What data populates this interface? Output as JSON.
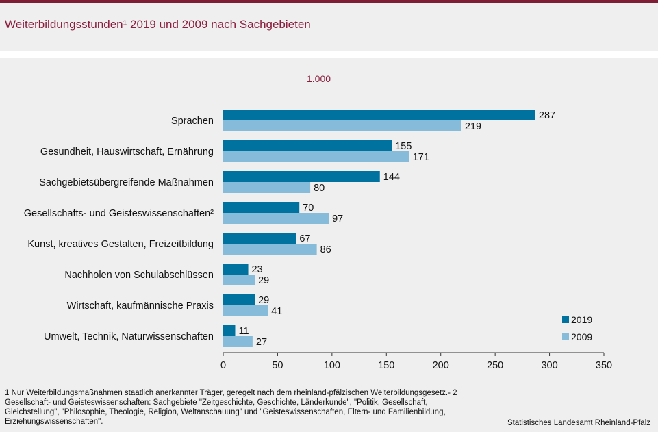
{
  "title": "Weiterbildungsstunden¹ 2019 und 2009 nach Sachgebieten",
  "unit_label": "1.000",
  "footnote": "1 Nur Weiterbildungsmaßnahmen  staatlich anerkannter Träger,  geregelt  nach dem rheinland-pfälzischen Weiterbildungsgesetz.- 2 Gesellschaft- und Geisteswissenschaften: Sachgebiete \"Zeitgeschichte, Geschichte, Länderkunde\", \"Politik, Gesellschaft, Gleichstellung\", \"Philosophie, Theologie, Religion, Weltanschauung\" und \"Geisteswissenschaften, Eltern- und Familienbildung, Erziehungswissenschaften\".",
  "source": "Statistisches Landesamt Rheinland-Pfalz",
  "legend": [
    {
      "label": "2019",
      "color": "#00729f"
    },
    {
      "label": "2009",
      "color": "#86bcd9"
    }
  ],
  "chart_data": {
    "type": "bar",
    "orientation": "horizontal",
    "categories": [
      "Sprachen",
      "Gesundheit, Hauswirtschaft, Ernährung",
      "Sachgebietsübergreifende Maßnahmen",
      "Gesellschafts- und Geisteswissenschaften²",
      "Kunst, kreatives Gestalten, Freizeitbildung",
      "Nachholen von Schulabschlüssen",
      "Wirtschaft, kaufmännische Praxis",
      "Umwelt, Technik, Naturwissenschaften"
    ],
    "series": [
      {
        "name": "2019",
        "color": "#00729f",
        "values": [
          287,
          155,
          144,
          70,
          67,
          23,
          29,
          11
        ]
      },
      {
        "name": "2009",
        "color": "#86bcd9",
        "values": [
          219,
          171,
          80,
          97,
          86,
          29,
          41,
          27
        ]
      }
    ],
    "xlim": [
      0,
      350
    ],
    "xticks": [
      0,
      50,
      100,
      150,
      200,
      250,
      300,
      350
    ],
    "legend_position": "bottom-right",
    "grid": false
  }
}
